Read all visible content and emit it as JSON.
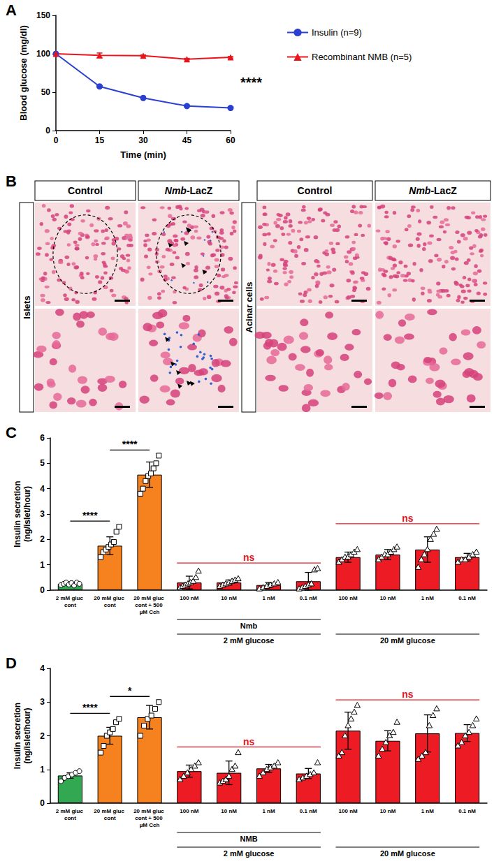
{
  "chart_data": [
    {
      "label": "A",
      "type": "line",
      "x": [
        0,
        15,
        30,
        45,
        60
      ],
      "xlim": [
        0,
        60
      ],
      "xticks": [
        0,
        15,
        30,
        45,
        60
      ],
      "ylim": [
        0,
        150
      ],
      "yticks": [
        0,
        50,
        100,
        150
      ],
      "x_label": "Time (min)",
      "y_label": "Blood glucose (mg/dl)",
      "grid": false,
      "legend": "right",
      "annotation": "****",
      "series": [
        {
          "name": "Insulin (n=9)",
          "color": "#2b3fd0",
          "marker": "circle",
          "values": [
            100,
            57.5,
            42.5,
            32,
            29.5
          ],
          "errors": [
            0,
            1,
            1,
            0.8,
            0.8
          ]
        },
        {
          "name": "Recombinant NMB (n=5)",
          "color": "#e8161c",
          "marker": "triangle",
          "values": [
            100,
            98,
            97.5,
            93,
            95.5
          ],
          "errors": [
            0,
            3,
            1,
            1,
            1
          ]
        }
      ]
    },
    {
      "label": "C",
      "type": "bar",
      "categories": [
        "2 mM gluc cont",
        "20 mM gluc cont",
        "20 mM gluc cont + 500 µM Cch",
        "100 nM",
        "10 nM",
        "1 nM",
        "0.1 nM",
        "100 nM",
        "10 nM",
        "1 nM",
        "0.1 nM"
      ],
      "values": [
        0.25,
        1.75,
        4.55,
        0.3,
        0.3,
        0.2,
        0.35,
        1.3,
        1.4,
        1.6,
        1.3
      ],
      "errors": [
        0.08,
        0.35,
        0.5,
        0.25,
        0.1,
        0.1,
        0.35,
        0.2,
        0.2,
        0.5,
        0.15
      ],
      "points": [
        [
          0.2,
          0.25,
          0.3,
          0.22,
          0.28,
          0.18,
          0.3,
          0.25
        ],
        [
          1.3,
          1.5,
          1.6,
          1.7,
          1.8,
          1.9,
          2.3,
          2.5
        ],
        [
          3.8,
          4.0,
          4.3,
          4.5,
          4.6,
          4.8,
          5.0,
          5.3
        ],
        [
          0.1,
          0.15,
          0.2,
          0.25,
          0.3,
          0.35,
          0.5,
          0.75
        ],
        [
          0.15,
          0.2,
          0.25,
          0.3,
          0.35,
          0.4,
          0.45
        ],
        [
          0.05,
          0.1,
          0.15,
          0.2,
          0.25,
          0.3
        ],
        [
          0.05,
          0.1,
          0.15,
          0.2,
          0.25,
          0.8,
          0.85
        ],
        [
          1.1,
          1.2,
          1.3,
          1.3,
          1.4,
          1.5,
          1.6
        ],
        [
          1.2,
          1.3,
          1.4,
          1.4,
          1.5,
          1.6,
          1.7
        ],
        [
          0.9,
          1.2,
          1.4,
          1.6,
          2.0,
          2.2,
          2.4
        ],
        [
          1.1,
          1.2,
          1.2,
          1.3,
          1.4,
          1.5
        ]
      ],
      "colors": [
        "#33a852",
        "#f5821f",
        "#f5821f",
        "#ed1c24",
        "#ed1c24",
        "#ed1c24",
        "#ed1c24",
        "#ed1c24",
        "#ed1c24",
        "#ed1c24",
        "#ed1c24"
      ],
      "markers": [
        "circle",
        "square",
        "square",
        "triangle",
        "triangle",
        "triangle",
        "triangle",
        "triangle",
        "triangle",
        "triangle",
        "triangle"
      ],
      "ylim": [
        0,
        6
      ],
      "yticks": [
        0,
        1,
        2,
        3,
        4,
        5,
        6
      ],
      "y_label": "Insulin secretion (ng/islet/hour)",
      "grid": false,
      "group_rows": [
        [
          {
            "label": "Nmb",
            "from": 3,
            "to": 6
          }
        ],
        [
          {
            "label": "2 mM glucose",
            "from": 3,
            "to": 6
          },
          {
            "label": "20 mM glucose",
            "from": 7,
            "to": 10
          }
        ]
      ],
      "annotations": [
        {
          "text": "****",
          "from": 0,
          "to": 1,
          "color": "#000000"
        },
        {
          "text": "****",
          "from": 1,
          "to": 2,
          "color": "#000000"
        },
        {
          "text": "ns",
          "from": 3,
          "to": 6,
          "color": "#e8161c"
        },
        {
          "text": "ns",
          "from": 7,
          "to": 10,
          "color": "#e8161c"
        }
      ]
    },
    {
      "label": "D",
      "type": "bar",
      "categories": [
        "2 mM gluc cont",
        "20 mM gluc cont",
        "20 mM gluc cont + 500 µM Cch",
        "100 nM",
        "10 nM",
        "1 nM",
        "0.1 nM",
        "100 nM",
        "10 nM",
        "1 nM",
        "0.1 nM"
      ],
      "values": [
        0.82,
        2.0,
        2.55,
        0.95,
        0.9,
        1.03,
        0.88,
        2.15,
        1.85,
        2.07,
        2.08
      ],
      "errors": [
        0.08,
        0.25,
        0.35,
        0.18,
        0.35,
        0.12,
        0.15,
        0.55,
        0.3,
        0.55,
        0.25
      ],
      "points": [
        [
          0.65,
          0.75,
          0.8,
          0.85,
          0.9,
          0.95
        ],
        [
          1.5,
          1.7,
          2.0,
          2.1,
          2.2,
          2.4,
          2.5
        ],
        [
          2.0,
          2.3,
          2.5,
          2.6,
          2.8,
          3.0
        ],
        [
          0.7,
          0.8,
          0.9,
          1.0,
          1.1,
          1.2
        ],
        [
          0.6,
          0.65,
          0.7,
          0.8,
          1.0,
          1.1,
          1.5
        ],
        [
          0.8,
          0.9,
          1.0,
          1.05,
          1.1,
          1.2
        ],
        [
          0.7,
          0.75,
          0.8,
          0.85,
          0.9,
          1.2
        ],
        [
          1.4,
          1.5,
          2.0,
          2.3,
          2.5,
          2.7,
          2.9
        ],
        [
          1.4,
          1.6,
          1.8,
          2.0,
          2.1,
          2.4
        ],
        [
          1.3,
          1.4,
          1.5,
          2.3,
          2.6,
          2.8
        ],
        [
          1.7,
          1.8,
          2.0,
          2.1,
          2.3,
          2.5
        ]
      ],
      "colors": [
        "#33a852",
        "#f5821f",
        "#f5821f",
        "#ed1c24",
        "#ed1c24",
        "#ed1c24",
        "#ed1c24",
        "#ed1c24",
        "#ed1c24",
        "#ed1c24",
        "#ed1c24"
      ],
      "markers": [
        "circle",
        "square",
        "square",
        "triangle",
        "triangle",
        "triangle",
        "triangle",
        "triangle",
        "triangle",
        "triangle",
        "triangle"
      ],
      "ylim": [
        0,
        4
      ],
      "yticks": [
        0,
        1,
        2,
        3,
        4
      ],
      "y_label": "Insulin secretion (ng/islet/hour)",
      "grid": false,
      "group_rows": [
        [
          {
            "label": "NMB",
            "from": 3,
            "to": 6
          }
        ],
        [
          {
            "label": "2 mM glucose",
            "from": 3,
            "to": 6
          },
          {
            "label": "20 mM glucose",
            "from": 7,
            "to": 10
          }
        ]
      ],
      "annotations": [
        {
          "text": "****",
          "from": 0,
          "to": 1,
          "color": "#000000"
        },
        {
          "text": "*",
          "from": 1,
          "to": 2,
          "color": "#000000"
        },
        {
          "text": "ns",
          "from": 3,
          "to": 6,
          "color": "#e8161c"
        },
        {
          "text": "ns",
          "from": 7,
          "to": 10,
          "color": "#e8161c"
        }
      ]
    }
  ],
  "histology": {
    "label": "B",
    "groups": [
      {
        "row_label": "Islets",
        "columns": [
          "Control",
          "Nmb-LacZ"
        ]
      },
      {
        "row_label": "Acinar cells",
        "columns": [
          "Control",
          "Nmb-LacZ"
        ]
      }
    ]
  }
}
